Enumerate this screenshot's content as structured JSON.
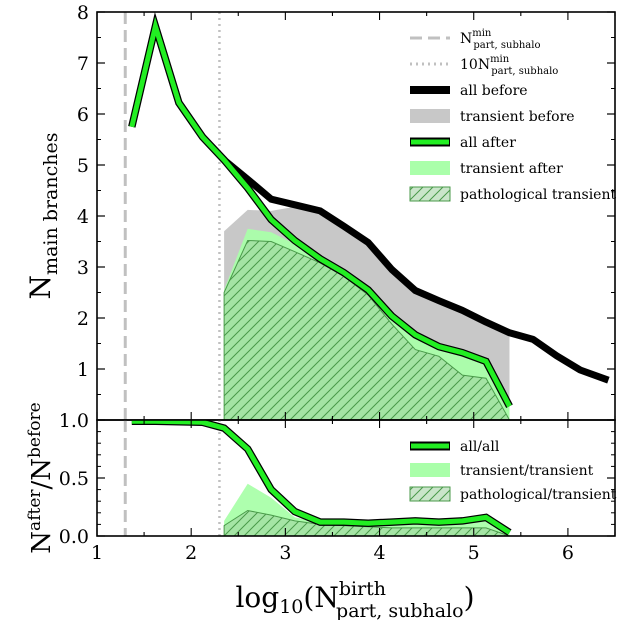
{
  "chart_data": [
    {
      "type": "line",
      "panel": "top",
      "ylabel": {
        "base": "N",
        "sub": "main branches"
      },
      "xlim": [
        1,
        6.5
      ],
      "ylim": [
        0,
        8
      ],
      "yticks": [
        1,
        2,
        3,
        4,
        5,
        6,
        7,
        8
      ],
      "vlines": [
        {
          "x": 1.3,
          "style": "dashed",
          "color": "#c0c0c0"
        },
        {
          "x": 2.3,
          "style": "dotted",
          "color": "#c0c0c0"
        }
      ],
      "series": [
        {
          "name": "all before",
          "kind": "line",
          "color": "#000000",
          "x": [
            2.35,
            2.6,
            2.85,
            3.1,
            3.37,
            3.62,
            3.88,
            4.13,
            4.38,
            4.63,
            4.88,
            5.13,
            5.38,
            5.63,
            5.88,
            6.13,
            6.43
          ],
          "y": [
            5.1,
            4.72,
            4.33,
            4.22,
            4.1,
            3.8,
            3.48,
            2.95,
            2.54,
            2.34,
            2.15,
            1.92,
            1.71,
            1.58,
            1.26,
            0.98,
            0.78
          ]
        },
        {
          "name": "transient before",
          "kind": "area",
          "color": "#c8c8c8",
          "x": [
            2.35,
            2.6,
            2.85,
            3.1,
            3.37,
            3.62,
            3.88,
            4.13,
            4.38,
            4.63,
            4.88,
            5.13,
            5.38
          ],
          "y": [
            3.7,
            4.12,
            4.1,
            4.18,
            4.07,
            3.79,
            3.46,
            2.94,
            2.53,
            2.34,
            2.14,
            1.92,
            1.7
          ]
        },
        {
          "name": "all after",
          "kind": "line",
          "color": "#22ee22",
          "x": [
            1.37,
            1.62,
            1.87,
            2.12,
            2.35,
            2.6,
            2.85,
            3.1,
            3.37,
            3.62,
            3.88,
            4.13,
            4.38,
            4.63,
            4.88,
            5.13,
            5.38
          ],
          "y": [
            5.75,
            7.72,
            6.22,
            5.55,
            5.1,
            4.55,
            3.93,
            3.52,
            3.16,
            2.89,
            2.55,
            2.04,
            1.67,
            1.44,
            1.32,
            1.15,
            0.27
          ]
        },
        {
          "name": "transient after",
          "kind": "area",
          "color": "#aaffaa",
          "x": [
            2.35,
            2.6,
            2.85,
            3.1,
            3.37,
            3.62,
            3.88,
            4.13,
            4.38,
            4.63,
            4.88,
            5.13,
            5.38
          ],
          "y": [
            2.55,
            3.75,
            3.68,
            3.45,
            3.14,
            2.87,
            2.52,
            2.0,
            1.64,
            1.41,
            1.29,
            1.12,
            0.25
          ]
        },
        {
          "name": "pathological transient",
          "kind": "hatched-area",
          "color": "#3f9f3f",
          "x": [
            2.35,
            2.6,
            2.85,
            3.1,
            3.37,
            3.62,
            3.88,
            4.13,
            4.38,
            4.63,
            4.88,
            5.13,
            5.38
          ],
          "y": [
            2.5,
            3.52,
            3.5,
            3.3,
            3.08,
            2.82,
            2.45,
            1.88,
            1.38,
            1.25,
            0.88,
            0.82,
            0.0
          ]
        }
      ],
      "legend": {
        "placement": "top-right",
        "items": [
          {
            "label": "N",
            "sub": "part, subhalo",
            "sup": "min",
            "style": "dashed"
          },
          {
            "label": "10N",
            "sub": "part, subhalo",
            "sup": "min",
            "style": "dotted"
          },
          {
            "label": "all before",
            "style": "line-black"
          },
          {
            "label": "transient before",
            "style": "patch-grey"
          },
          {
            "label": "all after",
            "style": "line-green"
          },
          {
            "label": "transient after",
            "style": "patch-lightgreen"
          },
          {
            "label": "pathological transient",
            "style": "patch-hatched"
          }
        ]
      }
    },
    {
      "type": "line",
      "panel": "bottom",
      "ylabel": {
        "base": "N",
        "sup1": "after",
        "slash": "/N",
        "sup2": "before"
      },
      "xlabel": {
        "base": "log",
        "sub1": "10",
        "open": "(N",
        "sup": "birth",
        "sub2": "part, subhalo",
        "close": ")"
      },
      "xlim": [
        1,
        6.5
      ],
      "ylim": [
        0,
        1
      ],
      "xticks": [
        1,
        2,
        3,
        4,
        5,
        6
      ],
      "yticks": [
        "0.0",
        "0.5",
        "1.0"
      ],
      "series": [
        {
          "name": "all/all",
          "kind": "line",
          "color": "#22ee22",
          "x": [
            1.37,
            1.62,
            1.87,
            2.12,
            2.35,
            2.6,
            2.85,
            3.1,
            3.37,
            3.62,
            3.88,
            4.13,
            4.38,
            4.63,
            4.88,
            5.13,
            5.38
          ],
          "y": [
            0.99,
            0.99,
            0.985,
            0.98,
            0.93,
            0.75,
            0.4,
            0.21,
            0.12,
            0.12,
            0.11,
            0.12,
            0.13,
            0.12,
            0.13,
            0.16,
            0.03
          ]
        },
        {
          "name": "transient/transient",
          "kind": "area",
          "color": "#aaffaa",
          "x": [
            2.35,
            2.6,
            2.85,
            3.1,
            3.37,
            3.62,
            3.88,
            4.13,
            4.38,
            4.63,
            4.88,
            5.13,
            5.38
          ],
          "y": [
            0.13,
            0.45,
            0.33,
            0.16,
            0.12,
            0.11,
            0.1,
            0.1,
            0.11,
            0.1,
            0.12,
            0.14,
            0.03
          ]
        },
        {
          "name": "pathological/transient",
          "kind": "hatched-area",
          "color": "#3f9f3f",
          "x": [
            2.35,
            2.6,
            2.85,
            3.1,
            3.37,
            3.62,
            3.88,
            4.13,
            4.38,
            4.63,
            4.88,
            5.13,
            5.38
          ],
          "y": [
            0.09,
            0.22,
            0.18,
            0.13,
            0.1,
            0.09,
            0.08,
            0.07,
            0.07,
            0.07,
            0.07,
            0.07,
            0.0
          ]
        }
      ],
      "legend": {
        "placement": "top-right",
        "items": [
          {
            "label": "all/all",
            "style": "line-green"
          },
          {
            "label": "transient/transient",
            "style": "patch-lightgreen"
          },
          {
            "label": "pathological/transient",
            "style": "patch-hatched"
          }
        ]
      }
    }
  ]
}
